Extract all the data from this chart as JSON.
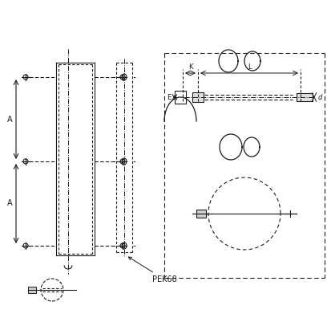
{
  "bg_color": "#ffffff",
  "line_color": "#1a1a1a",
  "fig_width": 4.13,
  "fig_height": 3.96,
  "dpi": 100,
  "label_A": "A",
  "label_K": "K",
  "label_L": "L",
  "label_E": "E",
  "label_D": "d",
  "label_REK68": "PEK68"
}
